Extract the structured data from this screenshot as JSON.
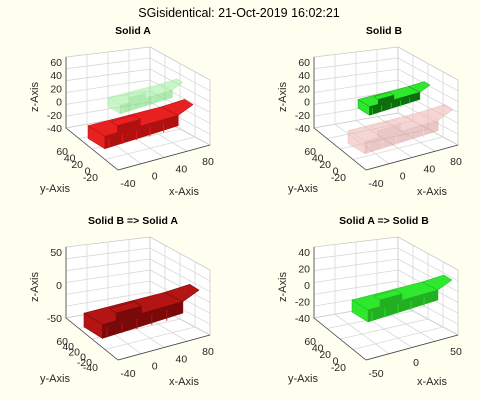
{
  "figure": {
    "title": "SGisidentical: 21-Oct-2019 16:02:21",
    "background": "#fffff0"
  },
  "colors": {
    "solid_red": "#e82020",
    "solid_dark_red": "#7a0a0a",
    "solid_green": "#2ee82e",
    "ghost_green": "#9cf09c",
    "ghost_red": "#f0b4b4",
    "grid": "#d8d8d8",
    "axis_text": "#262626"
  },
  "subplots": [
    {
      "title": "Solid A",
      "xlabel": "x-Axis",
      "ylabel": "y-Axis",
      "zlabel": "z-Axis",
      "z_ticks": [
        "60",
        "40",
        "20",
        "0",
        "-20",
        "-40"
      ],
      "y_ticks": [
        "60",
        "40",
        "20",
        "0",
        "-20"
      ],
      "x_ticks": [
        "-40",
        "0",
        "40",
        "80"
      ]
    },
    {
      "title": "Solid B",
      "xlabel": "x-Axis",
      "ylabel": "y-Axis",
      "zlabel": "z-Axis",
      "z_ticks": [
        "60",
        "40",
        "20",
        "0",
        "-20",
        "-40"
      ],
      "y_ticks": [
        "60",
        "40",
        "20",
        "0",
        "-20"
      ],
      "x_ticks": [
        "-40",
        "0",
        "40",
        "80"
      ]
    },
    {
      "title": "Solid B => Solid A",
      "xlabel": "x-Axis",
      "ylabel": "y-Axis",
      "zlabel": "z-Axis",
      "z_ticks": [
        "50",
        "0",
        "-50"
      ],
      "y_ticks": [
        "60",
        "40",
        "20",
        "0",
        "-20",
        "-40"
      ],
      "x_ticks": [
        "-40",
        "0",
        "40",
        "80"
      ]
    },
    {
      "title": "Solid A => Solid B",
      "xlabel": "x-Axis",
      "ylabel": "y-Axis",
      "zlabel": "z-Axis",
      "z_ticks": [
        "40",
        "20",
        "0",
        "-20",
        "-40"
      ],
      "y_ticks": [
        "60",
        "40",
        "20",
        "0",
        "-20"
      ],
      "x_ticks": [
        "-50",
        "0",
        "50"
      ]
    }
  ]
}
